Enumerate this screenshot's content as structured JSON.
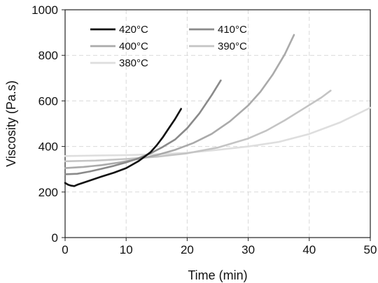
{
  "chart_data": {
    "type": "line",
    "title": "",
    "xlabel": "Time (min)",
    "ylabel": "Viscosity (Pa.s)",
    "xlim": [
      0,
      50
    ],
    "ylim": [
      0,
      1000
    ],
    "xticks": [
      0,
      10,
      20,
      30,
      40,
      50
    ],
    "yticks": [
      0,
      200,
      400,
      600,
      800,
      1000
    ],
    "grid": true,
    "legend_position": "top-left",
    "series": [
      {
        "name": "420°C",
        "color": "#111111",
        "x": [
          0,
          0.5,
          1,
          1.5,
          2,
          4,
          6,
          8,
          10,
          12,
          14,
          15,
          16,
          17,
          18,
          19
        ],
        "y": [
          240,
          232,
          228,
          226,
          232,
          250,
          268,
          285,
          305,
          335,
          375,
          405,
          440,
          480,
          520,
          565
        ]
      },
      {
        "name": "410°C",
        "color": "#8a8a8a",
        "x": [
          0,
          2,
          4,
          6,
          8,
          10,
          12,
          14,
          16,
          18,
          20,
          22,
          24,
          25.5
        ],
        "y": [
          278,
          280,
          290,
          302,
          315,
          330,
          348,
          370,
          398,
          430,
          480,
          545,
          625,
          690
        ]
      },
      {
        "name": "400°C",
        "color": "#aaaaaa",
        "x": [
          0,
          3,
          6,
          9,
          12,
          15,
          18,
          21,
          24,
          27,
          30,
          32,
          34,
          36,
          37.5
        ],
        "y": [
          305,
          310,
          318,
          330,
          345,
          362,
          385,
          415,
          455,
          510,
          580,
          640,
          715,
          805,
          890
        ]
      },
      {
        "name": "390°C",
        "color": "#c4c4c4",
        "x": [
          0,
          5,
          10,
          15,
          20,
          25,
          30,
          33,
          36,
          39,
          42,
          43.5
        ],
        "y": [
          335,
          338,
          345,
          355,
          370,
          395,
          435,
          470,
          515,
          565,
          615,
          645
        ]
      },
      {
        "name": "380°C",
        "color": "#dedede",
        "x": [
          0,
          5,
          10,
          15,
          20,
          25,
          30,
          35,
          40,
          45,
          50
        ],
        "y": [
          358,
          360,
          362,
          366,
          372,
          385,
          400,
          420,
          455,
          505,
          570
        ]
      }
    ]
  }
}
